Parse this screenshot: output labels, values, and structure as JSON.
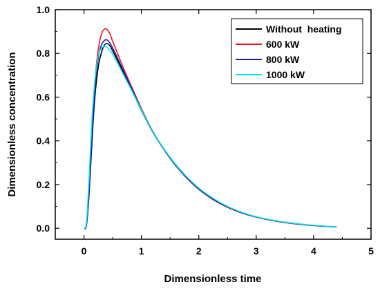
{
  "chart_data": {
    "type": "line",
    "title": "",
    "xlabel": "Dimensionless time",
    "ylabel": "Dimensionless concentration",
    "xlim": [
      -0.5,
      5
    ],
    "ylim": [
      -0.05,
      1.0
    ],
    "xticks": [
      0,
      1,
      2,
      3,
      4,
      5
    ],
    "yticks": [
      0.0,
      0.2,
      0.4,
      0.6,
      0.8,
      1.0
    ],
    "xtick_labels": [
      "0",
      "1",
      "2",
      "3",
      "4",
      "5"
    ],
    "ytick_labels": [
      "0.0",
      "0.2",
      "0.4",
      "0.6",
      "0.8",
      "1.0"
    ],
    "grid": false,
    "legend_position": "top-right",
    "series": [
      {
        "name": "Without  heating",
        "color": "#000000",
        "x": [
          0,
          0.04,
          0.08,
          0.12,
          0.16,
          0.2,
          0.25,
          0.3,
          0.35,
          0.4,
          0.45,
          0.5,
          0.6,
          0.7,
          0.8,
          1.0,
          1.2,
          1.4,
          1.6,
          1.8,
          2.0,
          2.25,
          2.5,
          2.75,
          3.0,
          3.25,
          3.5,
          3.75,
          4.0,
          4.2,
          4.4
        ],
        "y": [
          0.0,
          0.01,
          0.12,
          0.3,
          0.49,
          0.63,
          0.74,
          0.8,
          0.836,
          0.845,
          0.835,
          0.812,
          0.76,
          0.705,
          0.65,
          0.54,
          0.44,
          0.36,
          0.29,
          0.232,
          0.183,
          0.135,
          0.099,
          0.072,
          0.052,
          0.038,
          0.027,
          0.019,
          0.013,
          0.009,
          0.006
        ]
      },
      {
        "name": "600 kW",
        "color": "#e8141b",
        "x": [
          0,
          0.04,
          0.08,
          0.12,
          0.16,
          0.2,
          0.25,
          0.3,
          0.35,
          0.4,
          0.45,
          0.5,
          0.6,
          0.7,
          0.8,
          1.0,
          1.2,
          1.4,
          1.6,
          1.8,
          2.0,
          2.25,
          2.5,
          2.75,
          3.0,
          3.25,
          3.5,
          3.75,
          4.0,
          4.2,
          4.4
        ],
        "y": [
          0.0,
          0.01,
          0.13,
          0.34,
          0.54,
          0.7,
          0.82,
          0.885,
          0.91,
          0.91,
          0.89,
          0.855,
          0.79,
          0.725,
          0.665,
          0.548,
          0.443,
          0.358,
          0.286,
          0.227,
          0.178,
          0.131,
          0.096,
          0.07,
          0.051,
          0.037,
          0.026,
          0.018,
          0.013,
          0.009,
          0.006
        ]
      },
      {
        "name": "800 kW",
        "color": "#1a1ab4",
        "x": [
          0,
          0.04,
          0.08,
          0.12,
          0.16,
          0.2,
          0.25,
          0.3,
          0.35,
          0.4,
          0.45,
          0.5,
          0.6,
          0.7,
          0.8,
          1.0,
          1.2,
          1.4,
          1.6,
          1.8,
          2.0,
          2.25,
          2.5,
          2.75,
          3.0,
          3.25,
          3.5,
          3.75,
          4.0,
          4.2,
          4.4
        ],
        "y": [
          0.0,
          0.01,
          0.13,
          0.33,
          0.52,
          0.67,
          0.78,
          0.836,
          0.858,
          0.862,
          0.848,
          0.825,
          0.77,
          0.713,
          0.657,
          0.545,
          0.442,
          0.358,
          0.287,
          0.229,
          0.18,
          0.133,
          0.098,
          0.071,
          0.052,
          0.038,
          0.027,
          0.019,
          0.013,
          0.009,
          0.006
        ]
      },
      {
        "name": "1000 kW",
        "color": "#00e5ee",
        "x": [
          0,
          0.04,
          0.08,
          0.12,
          0.16,
          0.2,
          0.25,
          0.3,
          0.35,
          0.4,
          0.45,
          0.5,
          0.6,
          0.7,
          0.8,
          1.0,
          1.2,
          1.4,
          1.6,
          1.8,
          2.0,
          2.25,
          2.5,
          2.75,
          3.0,
          3.25,
          3.5,
          3.75,
          4.0,
          4.2,
          4.4
        ],
        "y": [
          0.0,
          0.02,
          0.18,
          0.4,
          0.58,
          0.7,
          0.79,
          0.822,
          0.832,
          0.828,
          0.815,
          0.796,
          0.748,
          0.697,
          0.646,
          0.542,
          0.443,
          0.361,
          0.291,
          0.233,
          0.184,
          0.137,
          0.1,
          0.073,
          0.053,
          0.039,
          0.028,
          0.02,
          0.014,
          0.01,
          0.006
        ]
      }
    ]
  }
}
